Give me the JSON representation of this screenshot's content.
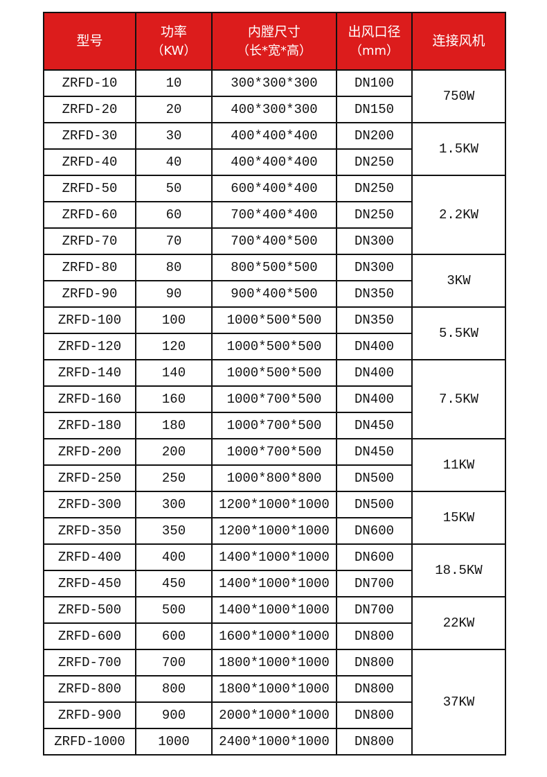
{
  "header": {
    "model": "型号",
    "power": "功率",
    "power_unit": "（KW）",
    "size": "内膛尺寸",
    "size_unit": "（长*宽*高）",
    "outlet": "出风口径",
    "outlet_unit": "（mm）",
    "fan": "连接风机",
    "color": "#dc1c1c"
  },
  "rows": [
    [
      "ZRFD-10",
      "10",
      "300*300*300",
      "DN100"
    ],
    [
      "ZRFD-20",
      "20",
      "400*300*300",
      "DN150"
    ],
    [
      "ZRFD-30",
      "30",
      "400*400*400",
      "DN200"
    ],
    [
      "ZRFD-40",
      "40",
      "400*400*400",
      "DN250"
    ],
    [
      "ZRFD-50",
      "50",
      "600*400*400",
      "DN250"
    ],
    [
      "ZRFD-60",
      "60",
      "700*400*400",
      "DN250"
    ],
    [
      "ZRFD-70",
      "70",
      "700*400*500",
      "DN300"
    ],
    [
      "ZRFD-80",
      "80",
      "800*500*500",
      "DN300"
    ],
    [
      "ZRFD-90",
      "90",
      "900*400*500",
      "DN350"
    ],
    [
      "ZRFD-100",
      "100",
      "1000*500*500",
      "DN350"
    ],
    [
      "ZRFD-120",
      "120",
      "1000*500*500",
      "DN400"
    ],
    [
      "ZRFD-140",
      "140",
      "1000*500*500",
      "DN400"
    ],
    [
      "ZRFD-160",
      "160",
      "1000*700*500",
      "DN400"
    ],
    [
      "ZRFD-180",
      "180",
      "1000*700*500",
      "DN450"
    ],
    [
      "ZRFD-200",
      "200",
      "1000*700*500",
      "DN450"
    ],
    [
      "ZRFD-250",
      "250",
      "1000*800*800",
      "DN500"
    ],
    [
      "ZRFD-300",
      "300",
      "1200*1000*1000",
      "DN500"
    ],
    [
      "ZRFD-350",
      "350",
      "1200*1000*1000",
      "DN600"
    ],
    [
      "ZRFD-400",
      "400",
      "1400*1000*1000",
      "DN600"
    ],
    [
      "ZRFD-450",
      "450",
      "1400*1000*1000",
      "DN700"
    ],
    [
      "ZRFD-500",
      "500",
      "1400*1000*1000",
      "DN700"
    ],
    [
      "ZRFD-600",
      "600",
      "1600*1000*1000",
      "DN800"
    ],
    [
      "ZRFD-700",
      "700",
      "1800*1000*1000",
      "DN800"
    ],
    [
      "ZRFD-800",
      "800",
      "1800*1000*1000",
      "DN800"
    ],
    [
      "ZRFD-900",
      "900",
      "2000*1000*1000",
      "DN800"
    ],
    [
      "ZRFD-1000",
      "1000",
      "2400*1000*1000",
      "DN800"
    ]
  ],
  "fan_groups": [
    {
      "fan": "750W",
      "rows": 2
    },
    {
      "fan": "1.5KW",
      "rows": 2
    },
    {
      "fan": "2.2KW",
      "rows": 3
    },
    {
      "fan": "3KW",
      "rows": 2
    },
    {
      "fan": "5.5KW",
      "rows": 2
    },
    {
      "fan": "7.5KW",
      "rows": 3
    },
    {
      "fan": "11KW",
      "rows": 2
    },
    {
      "fan": "15KW",
      "rows": 2
    },
    {
      "fan": "18.5KW",
      "rows": 2
    },
    {
      "fan": "22KW",
      "rows": 2
    },
    {
      "fan": "37KW",
      "rows": 4
    }
  ]
}
